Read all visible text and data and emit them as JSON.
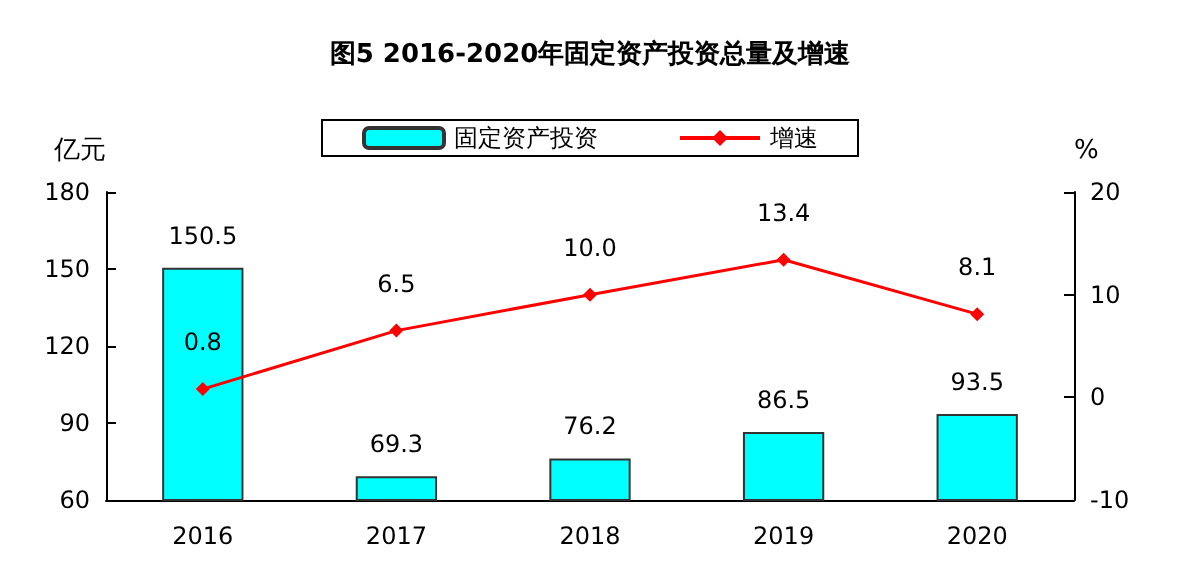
{
  "chart_data": {
    "type": "bar",
    "title": "图5 2016-2020年固定资产投资总量及增速",
    "ylabel": "亿元",
    "y2label": "%",
    "categories": [
      "2016",
      "2017",
      "2018",
      "2019",
      "2020"
    ],
    "series": [
      {
        "name": "固定资产投资",
        "color": "#00ffff",
        "values": [
          150.5,
          69.3,
          76.2,
          86.5,
          93.5
        ],
        "value_labels": [
          "150.5",
          "69.3",
          "76.2",
          "86.5",
          "93.5"
        ]
      },
      {
        "name": "增速",
        "type": "line",
        "color": "#ff0000",
        "axis": "y2",
        "marker": "diamond",
        "values": [
          0.8,
          6.5,
          10.0,
          13.4,
          8.1
        ],
        "value_labels": [
          "0.8",
          "6.5",
          "10.0",
          "13.4",
          "8.1"
        ]
      }
    ],
    "ylim": [
      60,
      180
    ],
    "yticks": [
      60,
      90,
      120,
      150,
      180
    ],
    "y2lim": [
      -10,
      20
    ],
    "y2ticks": [
      -10,
      0,
      10,
      20
    ],
    "legend": "top"
  }
}
